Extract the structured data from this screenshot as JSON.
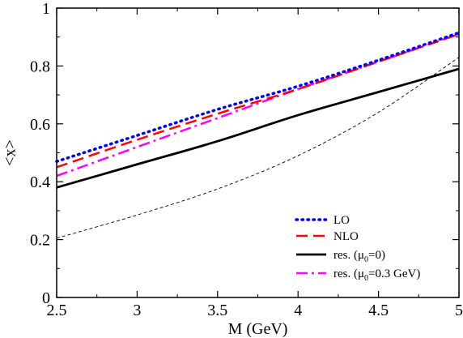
{
  "chart_data": {
    "type": "line",
    "xlabel": "M (GeV)",
    "ylabel": "<x>",
    "xlim": [
      2.5,
      5.0
    ],
    "ylim": [
      0,
      1
    ],
    "x_ticks": [
      "2.5",
      "3",
      "3.5",
      "4",
      "4.5",
      "5"
    ],
    "y_ticks": [
      "0",
      "0.2",
      "0.4",
      "0.6",
      "0.8",
      "1"
    ],
    "legend_position": "bottom-right",
    "grid": false,
    "x": [
      2.5,
      3.0,
      3.5,
      4.0,
      4.5,
      5.0
    ],
    "series": [
      {
        "name": "LO",
        "legend_text": "LO",
        "legend_sub": "",
        "legend_tail": "",
        "color": "#0000ff",
        "style": "dotted",
        "values": [
          0.47,
          0.56,
          0.65,
          0.73,
          0.82,
          0.915
        ]
      },
      {
        "name": "NLO",
        "legend_text": "NLO",
        "legend_sub": "",
        "legend_tail": "",
        "color": "#ff0000",
        "style": "dashed",
        "values": [
          0.45,
          0.545,
          0.635,
          0.72,
          0.815,
          0.91
        ]
      },
      {
        "name": "res. (μ0=0)",
        "legend_text": "res. (μ",
        "legend_sub": "0",
        "legend_tail": "=0)",
        "color": "#000000",
        "style": "solid",
        "values": [
          0.38,
          0.46,
          0.54,
          0.63,
          0.71,
          0.79
        ]
      },
      {
        "name": "res. (μ0=0.3 GeV)",
        "legend_text": "res. (μ",
        "legend_sub": "0",
        "legend_tail": "=0.3 GeV)",
        "color": "#ff00ff",
        "style": "dashdot",
        "values": [
          0.42,
          0.52,
          0.62,
          0.72,
          0.815,
          0.91
        ]
      },
      {
        "name": "",
        "legend_text": "",
        "legend_sub": "",
        "legend_tail": "",
        "color": "#000000",
        "style": "thin-dashed",
        "in_legend": false,
        "values": [
          0.205,
          0.285,
          0.375,
          0.49,
          0.64,
          0.83
        ]
      }
    ]
  }
}
